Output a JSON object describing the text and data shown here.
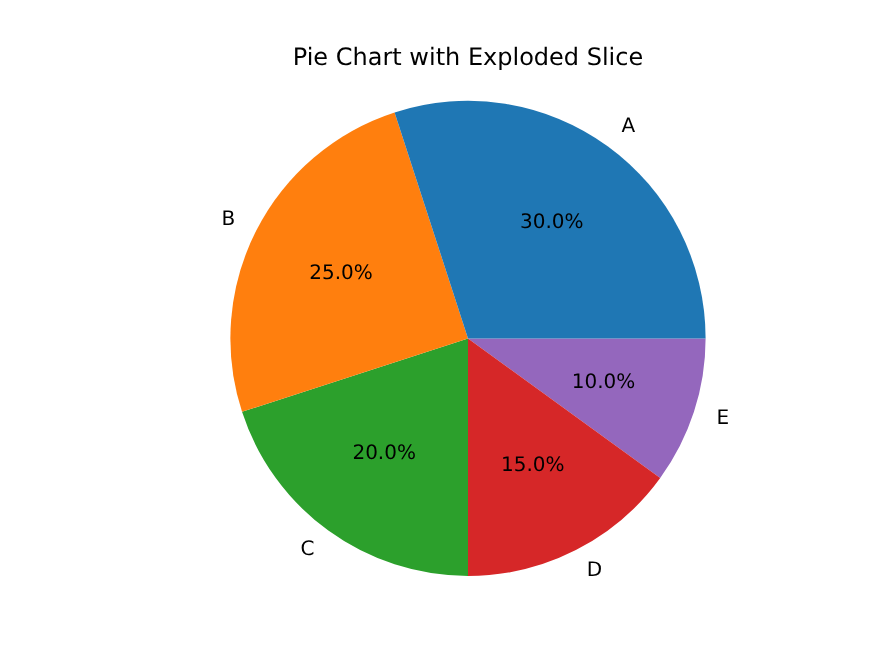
{
  "chart_data": {
    "type": "pie",
    "title": "Pie Chart with Exploded Slice",
    "categories": [
      "A",
      "B",
      "C",
      "D",
      "E"
    ],
    "values": [
      30,
      25,
      20,
      15,
      10
    ],
    "colors": [
      "#1f77b4",
      "#ff7f0e",
      "#2ca02c",
      "#d62728",
      "#9467bd"
    ],
    "value_labels": [
      "30.0%",
      "25.0%",
      "20.0%",
      "15.0%",
      "10.0%"
    ]
  }
}
